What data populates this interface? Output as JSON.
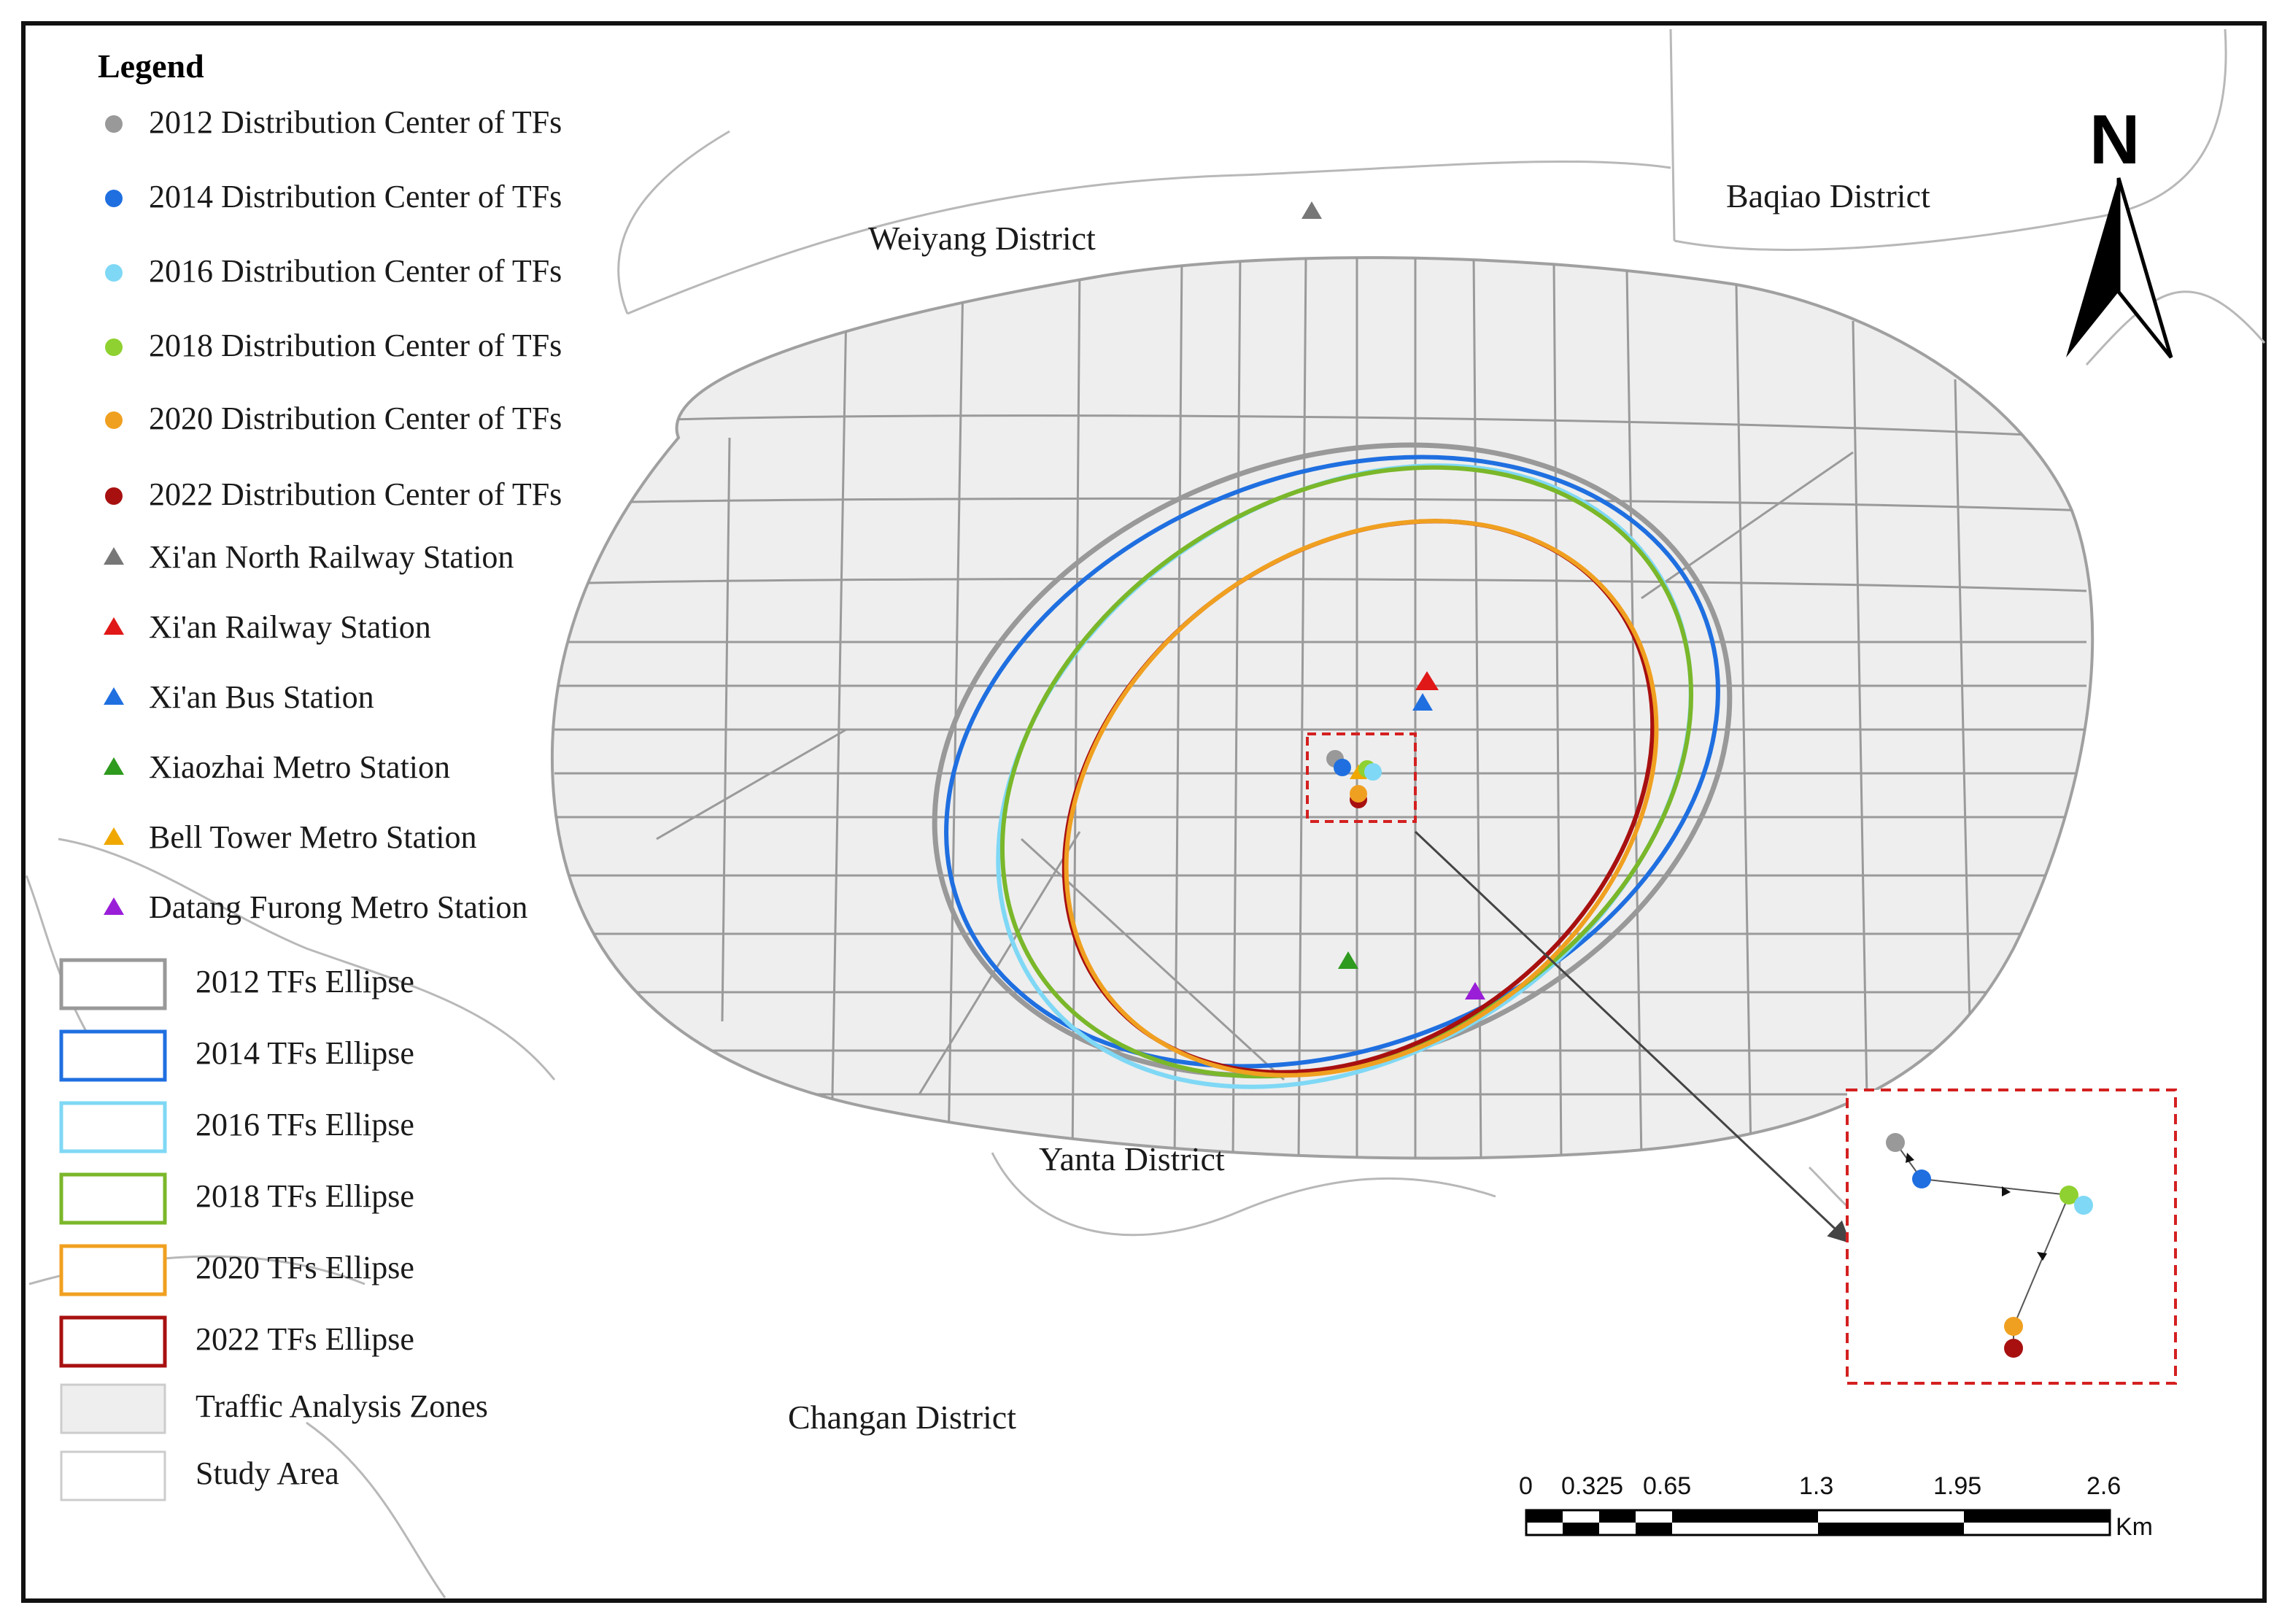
{
  "legend": {
    "title": "Legend",
    "items": [
      {
        "label": "2012 Distribution Center of TFs",
        "symbol": "circle",
        "color": "#999999"
      },
      {
        "label": "2014 Distribution Center of TFs",
        "symbol": "circle",
        "color": "#1f6fe0"
      },
      {
        "label": "2016 Distribution Center of TFs",
        "symbol": "circle",
        "color": "#7fd8f5"
      },
      {
        "label": "2018 Distribution Center of TFs",
        "symbol": "circle",
        "color": "#8fd130"
      },
      {
        "label": "2020 Distribution Center of TFs",
        "symbol": "circle",
        "color": "#f0a020"
      },
      {
        "label": "2022 Distribution Center of TFs",
        "symbol": "circle",
        "color": "#a81010"
      },
      {
        "label": "Xi'an North Railway Station",
        "symbol": "triangle",
        "color": "#777777"
      },
      {
        "label": "Xi'an Railway Station",
        "symbol": "triangle",
        "color": "#e01818"
      },
      {
        "label": "Xi'an Bus Station",
        "symbol": "triangle",
        "color": "#1f6fe0"
      },
      {
        "label": "Xiaozhai Metro Station",
        "symbol": "triangle",
        "color": "#2e9a1e"
      },
      {
        "label": "Bell Tower Metro Station",
        "symbol": "triangle",
        "color": "#f0a800"
      },
      {
        "label": "Datang Furong Metro Station",
        "symbol": "triangle",
        "color": "#9a1ed8"
      },
      {
        "label": "2012  TFs Ellipse",
        "symbol": "rect",
        "color": "#999999"
      },
      {
        "label": "2014  TFs  Ellipse",
        "symbol": "rect",
        "color": "#1f6fe0"
      },
      {
        "label": "2016  TFs  Ellipse",
        "symbol": "rect",
        "color": "#7fd8f5"
      },
      {
        "label": "2018  TFs  Ellipse",
        "symbol": "rect",
        "color": "#7ab72a"
      },
      {
        "label": "2020  TFs  Ellipse",
        "symbol": "rect",
        "color": "#f0a020"
      },
      {
        "label": "2022  TFs  Ellipse",
        "symbol": "rect",
        "color": "#a81010"
      },
      {
        "label": "Traffic Analysis Zones",
        "symbol": "fill",
        "color": "#eeeeee"
      },
      {
        "label": "Study Area",
        "symbol": "fill",
        "color": "#ffffff"
      }
    ]
  },
  "districts": {
    "weiyang": "Weiyang District",
    "baqiao": "Baqiao District",
    "yanta": "Yanta District",
    "changan": "Changan District"
  },
  "north_arrow": {
    "label": "N"
  },
  "scale_bar": {
    "ticks": [
      "0",
      "0.325",
      "0.65",
      "1.3",
      "1.95",
      "2.6"
    ],
    "unit": "Km"
  },
  "colors": {
    "zone_fill": "#eeeeee",
    "road_stroke": "#9a9a9a",
    "inset_border": "#d42020",
    "frame": "#111111"
  }
}
